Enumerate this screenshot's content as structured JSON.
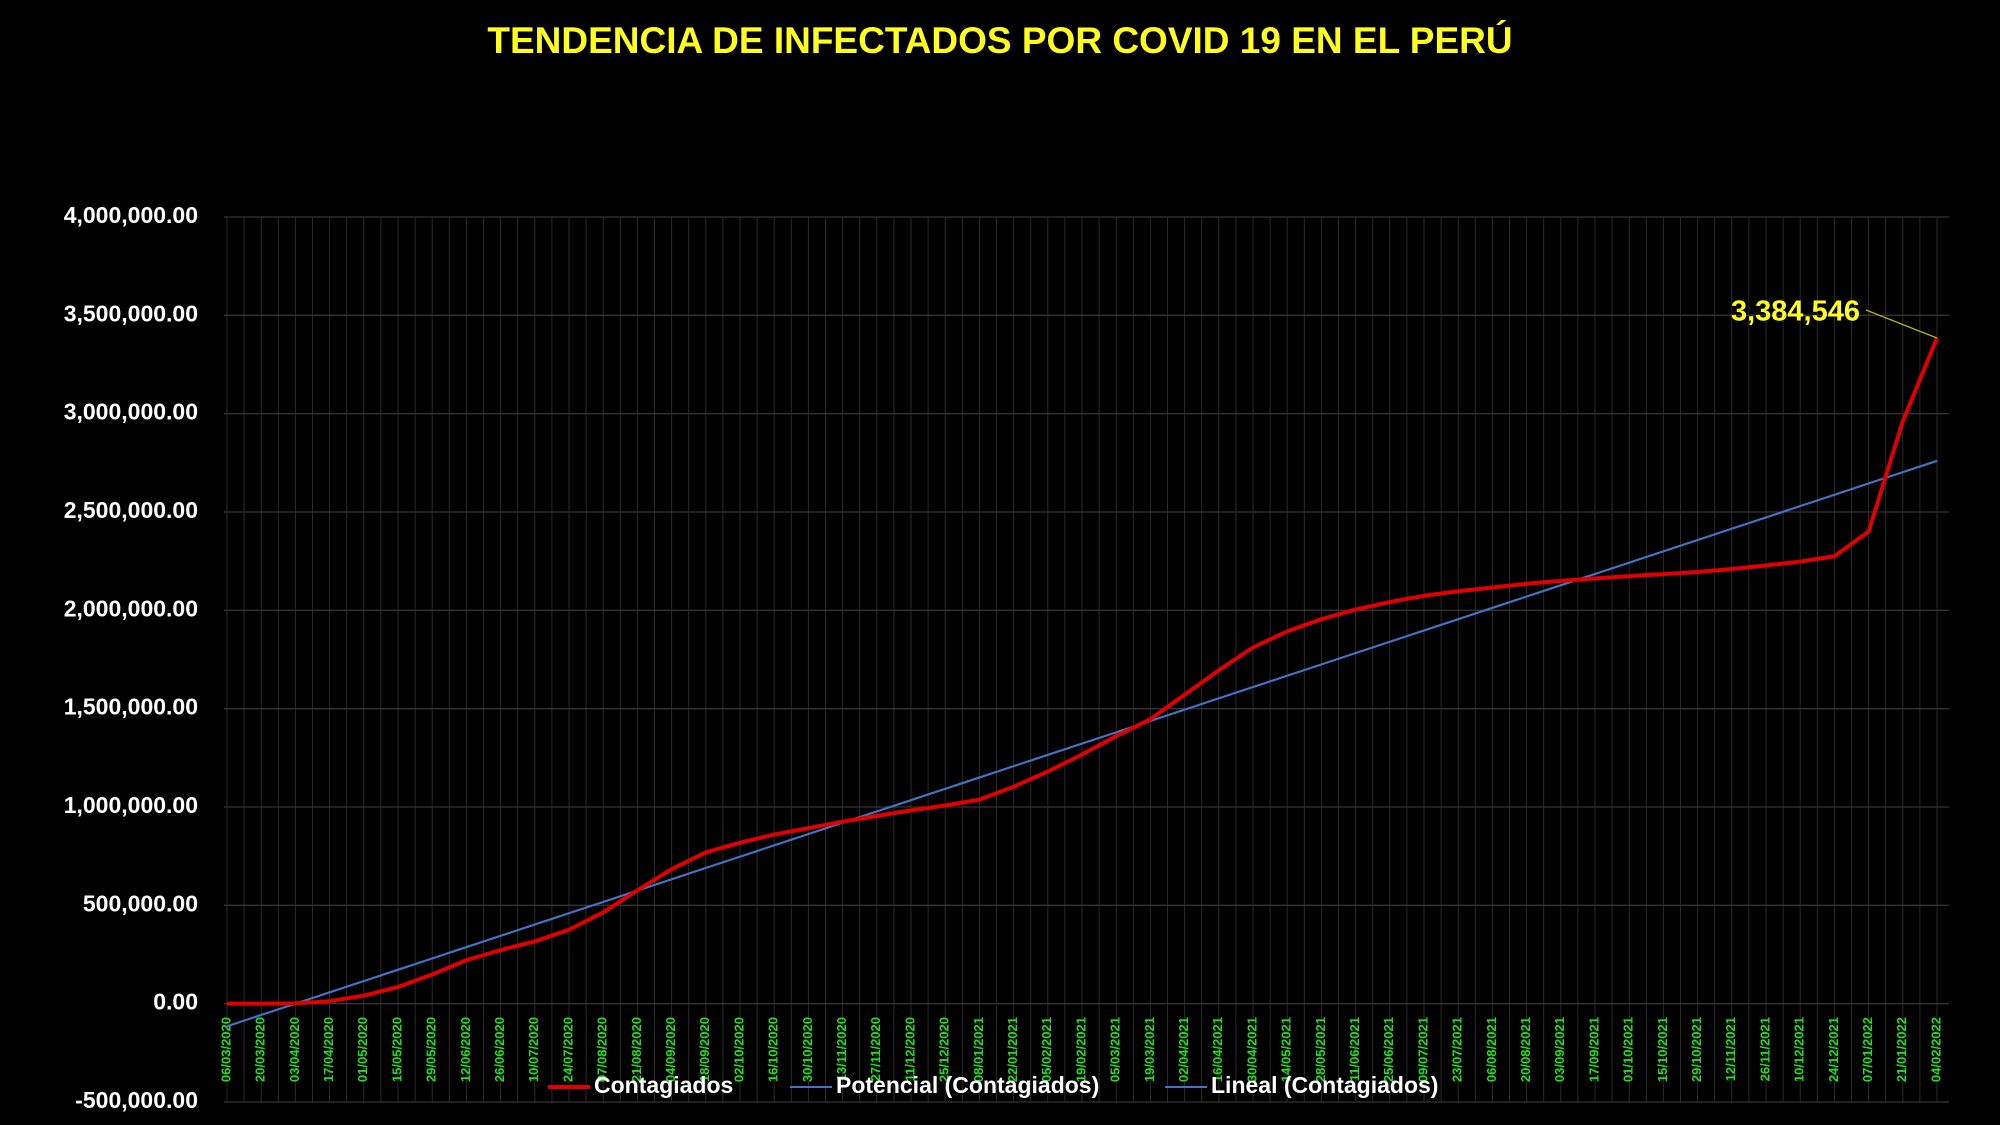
{
  "chart_data": {
    "type": "line",
    "title": "TENDENCIA DE INFECTADOS POR COVID 19 EN EL PERÚ",
    "categories": [
      "06/03/2020",
      "20/03/2020",
      "03/04/2020",
      "17/04/2020",
      "01/05/2020",
      "15/05/2020",
      "29/05/2020",
      "12/06/2020",
      "26/06/2020",
      "10/07/2020",
      "24/07/2020",
      "07/08/2020",
      "21/08/2020",
      "04/09/2020",
      "18/09/2020",
      "02/10/2020",
      "16/10/2020",
      "30/10/2020",
      "13/11/2020",
      "27/11/2020",
      "11/12/2020",
      "25/12/2020",
      "08/01/2021",
      "22/01/2021",
      "05/02/2021",
      "19/02/2021",
      "05/03/2021",
      "19/03/2021",
      "02/04/2021",
      "16/04/2021",
      "30/04/2021",
      "14/05/2021",
      "28/05/2021",
      "11/06/2021",
      "25/06/2021",
      "09/07/2021",
      "23/07/2021",
      "06/08/2021",
      "20/08/2021",
      "03/09/2021",
      "17/09/2021",
      "01/10/2021",
      "15/10/2021",
      "29/10/2021",
      "12/11/2021",
      "26/11/2021",
      "10/12/2021",
      "24/12/2021",
      "07/01/2022",
      "21/01/2022",
      "04/02/2022"
    ],
    "series": [
      {
        "name": "Contagiados",
        "color": "#e00000",
        "values": [
          1,
          234,
          1595,
          12491,
          40459,
          84495,
          148285,
          220749,
          272364,
          316448,
          375961,
          463875,
          576067,
          683702,
          768895,
          818297,
          859740,
          892497,
          925431,
          954347,
          982912,
          1007657,
          1037350,
          1102796,
          1180000,
          1267000,
          1360000,
          1446000,
          1571000,
          1695000,
          1811000,
          1893000,
          1955000,
          2004000,
          2042000,
          2074000,
          2097000,
          2116000,
          2135000,
          2150000,
          2162000,
          2174000,
          2184000,
          2195000,
          2210000,
          2228000,
          2248000,
          2275000,
          2400000,
          2960000,
          3384546
        ],
        "value_labels": [
          null,
          null,
          null,
          null,
          null,
          null,
          null,
          null,
          null,
          null,
          null,
          null,
          null,
          null,
          null,
          null,
          null,
          null,
          null,
          null,
          null,
          null,
          null,
          null,
          null,
          null,
          null,
          null,
          null,
          null,
          null,
          null,
          null,
          null,
          null,
          null,
          null,
          null,
          null,
          null,
          null,
          null,
          null,
          null,
          null,
          null,
          null,
          null,
          null,
          null,
          "3,384,546"
        ]
      },
      {
        "name": "Potencial (Contagiados)",
        "color": "#4472c4",
        "values": [
          -115000,
          -57500,
          0,
          57500,
          115000,
          172500,
          230000,
          287500,
          345000,
          402500,
          460000,
          517500,
          575000,
          632500,
          690000,
          747500,
          805000,
          862500,
          920000,
          977500,
          1035000,
          1092500,
          1150000,
          1207500,
          1265000,
          1322500,
          1380000,
          1437500,
          1495000,
          1552500,
          1610000,
          1667500,
          1725000,
          1782500,
          1840000,
          1897500,
          1955000,
          2012500,
          2070000,
          2127500,
          2185000,
          2242500,
          2300000,
          2357500,
          2415000,
          2472500,
          2530000,
          2587500,
          2645000,
          2702500,
          2760000
        ]
      },
      {
        "name": "Lineal (Contagiados)",
        "color": "#4472c4",
        "values": [
          -115000,
          -57500,
          0,
          57500,
          115000,
          172500,
          230000,
          287500,
          345000,
          402500,
          460000,
          517500,
          575000,
          632500,
          690000,
          747500,
          805000,
          862500,
          920000,
          977500,
          1035000,
          1092500,
          1150000,
          1207500,
          1265000,
          1322500,
          1380000,
          1437500,
          1495000,
          1552500,
          1610000,
          1667500,
          1725000,
          1782500,
          1840000,
          1897500,
          1955000,
          2012500,
          2070000,
          2127500,
          2185000,
          2242500,
          2300000,
          2357500,
          2415000,
          2472500,
          2530000,
          2587500,
          2645000,
          2702500,
          2760000
        ]
      }
    ],
    "ylim": [
      -500000,
      4000000
    ],
    "yticks": [
      {
        "value": -500000,
        "label": "-500,000.00"
      },
      {
        "value": 0,
        "label": "0.00"
      },
      {
        "value": 500000,
        "label": "500,000.00"
      },
      {
        "value": 1000000,
        "label": "1,000,000.00"
      },
      {
        "value": 1500000,
        "label": "1,500,000.00"
      },
      {
        "value": 2000000,
        "label": "2,000,000.00"
      },
      {
        "value": 2500000,
        "label": "2,500,000.00"
      },
      {
        "value": 3000000,
        "label": "3,000,000.00"
      },
      {
        "value": 3500000,
        "label": "3,500,000.00"
      },
      {
        "value": 4000000,
        "label": "4,000,000.00"
      }
    ],
    "grid": true,
    "legend": "bottom"
  }
}
